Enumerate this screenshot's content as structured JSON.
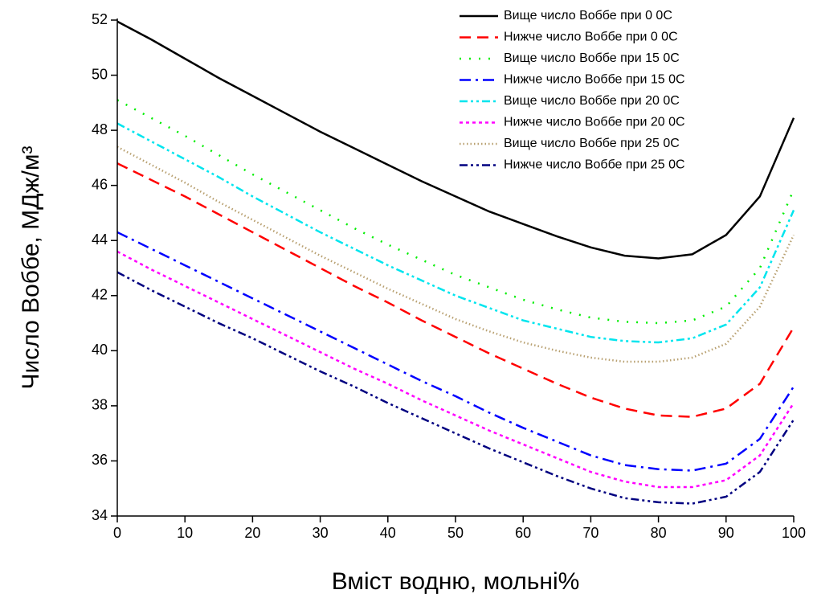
{
  "chart_data": {
    "type": "line",
    "xlabel": "Вміст водню, мольні%",
    "ylabel": "Число Воббе, МДж/м³",
    "x": [
      0,
      5,
      10,
      15,
      20,
      25,
      30,
      35,
      40,
      45,
      50,
      55,
      60,
      65,
      70,
      75,
      80,
      85,
      90,
      95,
      100
    ],
    "xlim": [
      0,
      100
    ],
    "xticks": [
      0,
      10,
      20,
      30,
      40,
      50,
      60,
      70,
      80,
      90,
      100
    ],
    "ylim": [
      34,
      52
    ],
    "yticks": [
      34,
      36,
      38,
      40,
      42,
      44,
      46,
      48,
      50,
      52
    ],
    "legend": "upper right",
    "series": [
      {
        "name": "Вище число Воббе при 0 0С",
        "color": "#000000",
        "dash": "solid",
        "values": [
          51.95,
          51.3,
          50.6,
          49.9,
          49.25,
          48.6,
          47.95,
          47.35,
          46.75,
          46.15,
          45.6,
          45.05,
          44.6,
          44.15,
          43.75,
          43.45,
          43.35,
          43.5,
          44.2,
          45.6,
          48.45
        ]
      },
      {
        "name": "Нижче число Воббе при 0 0С",
        "color": "#ff0000",
        "dash": "dash",
        "values": [
          46.8,
          46.2,
          45.6,
          44.95,
          44.3,
          43.65,
          43.0,
          42.35,
          41.75,
          41.1,
          40.5,
          39.9,
          39.35,
          38.8,
          38.3,
          37.9,
          37.65,
          37.6,
          37.9,
          38.8,
          40.85
        ]
      },
      {
        "name": "Вище число Воббе при 15 0С",
        "color": "#00ee00",
        "dash": "dot",
        "values": [
          49.1,
          48.45,
          47.8,
          47.1,
          46.4,
          45.75,
          45.1,
          44.45,
          43.85,
          43.3,
          42.75,
          42.3,
          41.85,
          41.5,
          41.2,
          41.05,
          41.0,
          41.1,
          41.6,
          43.0,
          45.85
        ]
      },
      {
        "name": "Нижче число Воббе при 15 0С",
        "color": "#0000ff",
        "dash": "dashdot",
        "values": [
          44.3,
          43.7,
          43.1,
          42.5,
          41.9,
          41.3,
          40.7,
          40.1,
          39.5,
          38.9,
          38.35,
          37.75,
          37.2,
          36.7,
          36.2,
          35.85,
          35.7,
          35.65,
          35.9,
          36.8,
          38.7
        ]
      },
      {
        "name": "Вище число Воббе при 20 0С",
        "color": "#00e5ee",
        "dash": "dashdotdot",
        "values": [
          48.25,
          47.6,
          46.95,
          46.3,
          45.6,
          44.95,
          44.3,
          43.7,
          43.1,
          42.55,
          42.0,
          41.55,
          41.1,
          40.8,
          40.5,
          40.35,
          40.3,
          40.45,
          40.95,
          42.3,
          45.1
        ]
      },
      {
        "name": "Нижче число Воббе при 20 0С",
        "color": "#ff00ff",
        "dash": "shortdot",
        "values": [
          43.6,
          42.95,
          42.35,
          41.75,
          41.15,
          40.55,
          39.95,
          39.35,
          38.8,
          38.2,
          37.65,
          37.1,
          36.6,
          36.1,
          35.6,
          35.25,
          35.05,
          35.05,
          35.3,
          36.2,
          38.1
        ]
      },
      {
        "name": "Вище число Воббе при 25 0С",
        "color": "#b8a070",
        "dash": "finedot",
        "values": [
          47.4,
          46.75,
          46.1,
          45.4,
          44.75,
          44.1,
          43.45,
          42.85,
          42.25,
          41.7,
          41.15,
          40.7,
          40.3,
          40.0,
          39.75,
          39.6,
          39.6,
          39.75,
          40.25,
          41.6,
          44.2
        ]
      },
      {
        "name": "Нижче число Воббе при 25 0С",
        "color": "#000080",
        "dash": "dashdotdot",
        "values": [
          42.85,
          42.2,
          41.6,
          41.0,
          40.45,
          39.85,
          39.25,
          38.7,
          38.1,
          37.55,
          37.0,
          36.45,
          35.95,
          35.45,
          35.0,
          34.65,
          34.5,
          34.45,
          34.7,
          35.6,
          37.5
        ]
      }
    ]
  }
}
